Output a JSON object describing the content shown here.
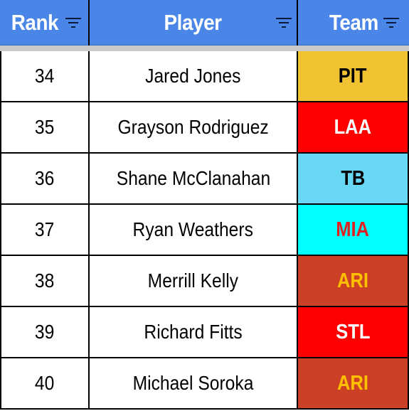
{
  "columns": {
    "rank": "Rank",
    "player": "Player",
    "team": "Team"
  },
  "rows": [
    {
      "rank": "34",
      "player": "Jared Jones",
      "team": "PIT",
      "team_bg": "#f1c232",
      "team_fg": "#000000"
    },
    {
      "rank": "35",
      "player": "Grayson Rodriguez",
      "team": "LAA",
      "team_bg": "#ff0000",
      "team_fg": "#ffffff"
    },
    {
      "rank": "36",
      "player": "Shane McClanahan",
      "team": "TB",
      "team_bg": "#69d8f5",
      "team_fg": "#000000"
    },
    {
      "rank": "37",
      "player": "Ryan Weathers",
      "team": "MIA",
      "team_bg": "#00ffff",
      "team_fg": "#e02020"
    },
    {
      "rank": "38",
      "player": "Merrill Kelly",
      "team": "ARI",
      "team_bg": "#cc4125",
      "team_fg": "#ffc000"
    },
    {
      "rank": "39",
      "player": "Richard Fitts",
      "team": "STL",
      "team_bg": "#ff0000",
      "team_fg": "#ffffff"
    },
    {
      "rank": "40",
      "player": "Michael Soroka",
      "team": "ARI",
      "team_bg": "#cc4125",
      "team_fg": "#ffc000"
    }
  ],
  "colors": {
    "header_bg": "#4a86e8",
    "header_text": "#ffffff"
  }
}
